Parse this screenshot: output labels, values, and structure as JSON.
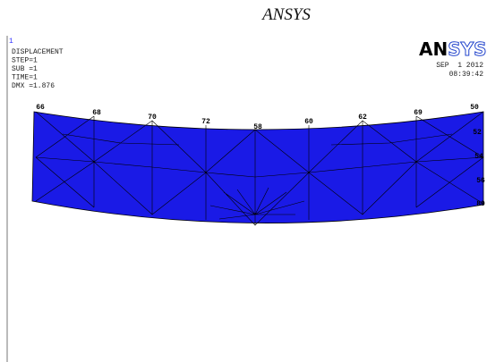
{
  "header": {
    "title": "ANSYS"
  },
  "window": {
    "number": "1",
    "info": [
      "DISPLACEMENT",
      "STEP=1",
      "SUB =1",
      "TIME=1",
      "DMX =1.876"
    ],
    "logo": [
      "AN",
      "SYS"
    ],
    "date": "SEP  1 2012",
    "time": "08:39:42"
  },
  "nodes": [
    {
      "label": "66"
    },
    {
      "label": "68"
    },
    {
      "label": "70"
    },
    {
      "label": "72"
    },
    {
      "label": "58"
    },
    {
      "label": "60"
    },
    {
      "label": "62"
    },
    {
      "label": "69"
    },
    {
      "label": "50"
    },
    {
      "label": "52"
    },
    {
      "label": "54"
    },
    {
      "label": "56"
    },
    {
      "label": "80"
    }
  ]
}
